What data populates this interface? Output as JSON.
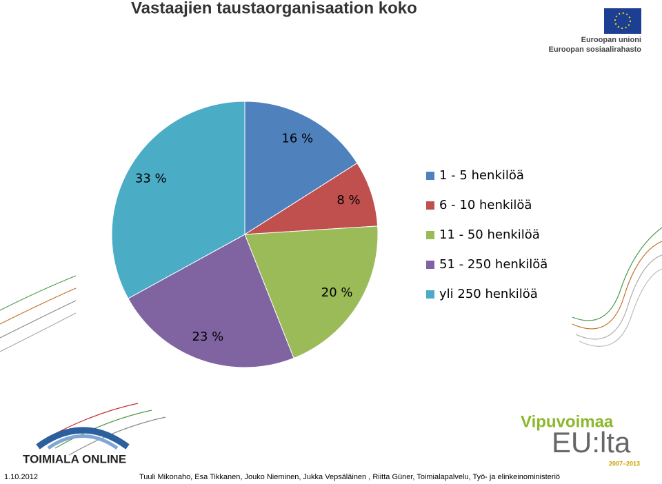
{
  "chart_data": {
    "type": "pie",
    "title": "Vastaajien taustaorganisaation koko",
    "categories": [
      "1 - 5 henkilöä",
      "6 - 10 henkilöä",
      "11 - 50 henkilöä",
      "51 - 250 henkilöä",
      "yli 250 henkilöä"
    ],
    "values": [
      16,
      8,
      20,
      23,
      33
    ],
    "value_labels": [
      "16 %",
      "8 %",
      "20 %",
      "23 %",
      "33 %"
    ],
    "colors": [
      "#4f81bd",
      "#c0504d",
      "#9bbb59",
      "#8064a2",
      "#4bacc6"
    ],
    "legend": "right"
  },
  "logos": {
    "eu_line1": "Euroopan unioni",
    "eu_line2": "Euroopan sosiaalirahasto",
    "vipu": "Vipuvoimaa",
    "eu": "EU:lta",
    "years": "2007–2013",
    "toimiala": "TOIMIALA ONLINE"
  },
  "footer": {
    "date": "1.10.2012",
    "authors": "Tuuli Mikonaho, Esa Tikkanen, Jouko Nieminen, Jukka Vepsäläinen , Riitta Güner, Toimialapalvelu, Työ- ja elinkeinoministeriö"
  }
}
